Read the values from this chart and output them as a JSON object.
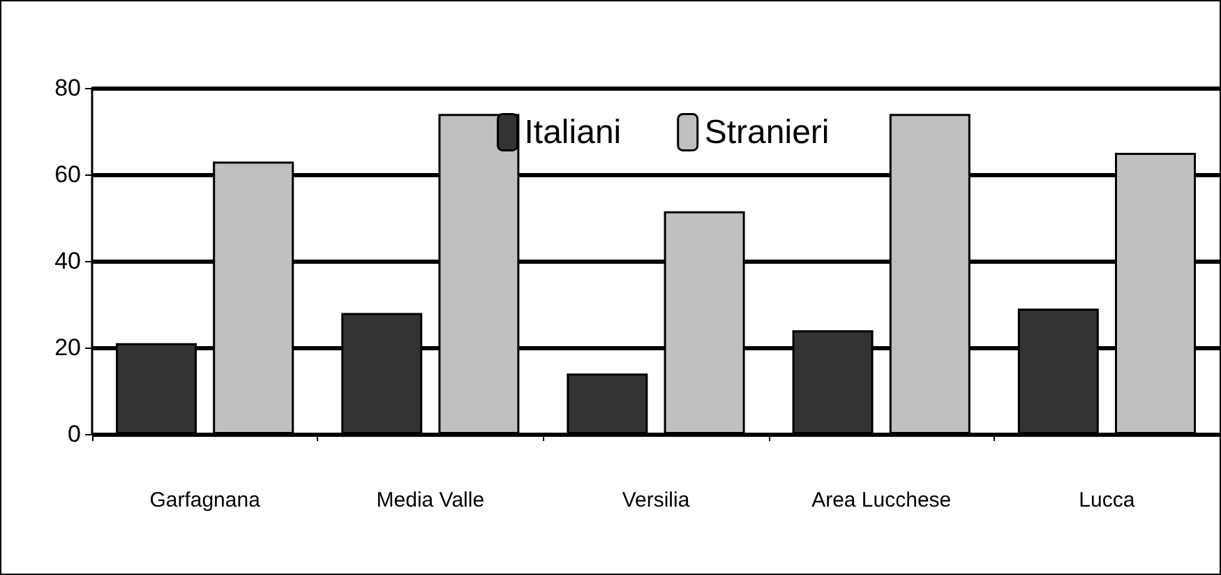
{
  "chart_data": {
    "type": "bar",
    "categories": [
      "Garfagnana",
      "Media Valle",
      "Versilia",
      "Area Lucchese",
      "Lucca"
    ],
    "series": [
      {
        "name": "Italiani",
        "color": "#333333",
        "values": [
          21,
          28,
          14,
          24,
          29
        ]
      },
      {
        "name": "Stranieri",
        "color": "#c0c0c0",
        "values": [
          63,
          74,
          51.5,
          74,
          65
        ]
      }
    ],
    "ylim": [
      0,
      80
    ],
    "yticks": [
      0,
      20,
      40,
      60,
      80
    ],
    "grid": "y",
    "legend": "top"
  }
}
